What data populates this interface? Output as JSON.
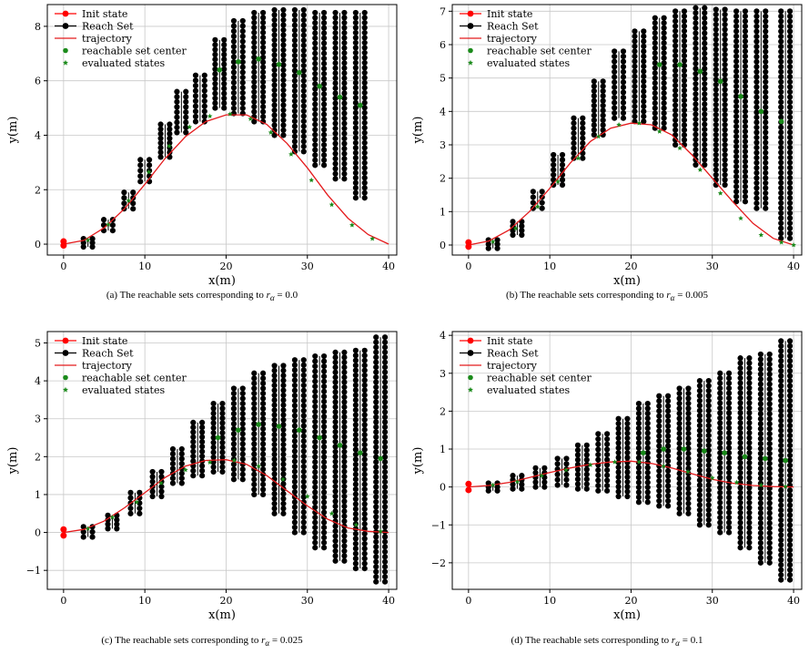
{
  "colors": {
    "init": "#ff0000",
    "reach": "#000000",
    "trajectory": "#e41a1c",
    "center": "#1a8a1a",
    "evaluated": "#1a8a1a",
    "grid": "#c8c8c8"
  },
  "chart_data": [
    {
      "type": "scatter",
      "caption": "(a) The reachable sets corresponding to",
      "caption_value": "= 0.0",
      "xlabel": "x(m)",
      "ylabel": "y(m)",
      "xlim": [
        -2,
        41
      ],
      "ylim": [
        -0.4,
        8.8
      ],
      "xticks": [
        0,
        10,
        20,
        30,
        40
      ],
      "yticks": [
        0,
        2,
        4,
        6,
        8
      ],
      "grid": true,
      "legend_position": "upper-left",
      "legend": [
        "Init state",
        "Reach Set",
        "trajectory",
        "reachable set center",
        "evaluated states"
      ],
      "init": [
        [
          0,
          0.1
        ],
        [
          0,
          -0.05
        ]
      ],
      "trajectory": {
        "x": [
          0,
          2.5,
          5,
          7.5,
          10,
          12.5,
          15,
          17.5,
          20,
          22.5,
          25,
          27.5,
          30,
          32.5,
          35,
          37.5,
          40
        ],
        "y": [
          0.0,
          0.14,
          0.6,
          1.3,
          2.2,
          3.15,
          3.95,
          4.5,
          4.75,
          4.75,
          4.4,
          3.7,
          2.8,
          1.8,
          0.95,
          0.35,
          0.0
        ]
      },
      "evaluated": {
        "x": [
          3,
          5.5,
          8,
          10.5,
          13,
          15.5,
          18,
          20.5,
          23,
          25.5,
          28,
          30.5,
          33,
          35.5,
          38
        ],
        "y": [
          0.15,
          0.72,
          1.6,
          2.65,
          3.6,
          4.3,
          4.7,
          4.78,
          4.6,
          4.1,
          3.3,
          2.35,
          1.45,
          0.7,
          0.2
        ]
      },
      "reach_sets": [
        {
          "x": 3.0,
          "ymin": -0.1,
          "ymax": 0.2
        },
        {
          "x": 5.5,
          "ymin": 0.5,
          "ymax": 0.9
        },
        {
          "x": 8.0,
          "ymin": 1.3,
          "ymax": 1.9
        },
        {
          "x": 10.0,
          "ymin": 2.3,
          "ymax": 3.1
        },
        {
          "x": 12.5,
          "ymin": 3.2,
          "ymax": 4.4
        },
        {
          "x": 14.5,
          "ymin": 4.1,
          "ymax": 5.6
        },
        {
          "x": 16.8,
          "ymin": 4.5,
          "ymax": 6.2
        },
        {
          "x": 19.2,
          "ymin": 5.0,
          "ymax": 7.5
        },
        {
          "x": 21.5,
          "ymin": 4.8,
          "ymax": 8.2
        },
        {
          "x": 24.0,
          "ymin": 4.5,
          "ymax": 8.5
        },
        {
          "x": 26.5,
          "ymin": 4.0,
          "ymax": 8.6
        },
        {
          "x": 29.0,
          "ymin": 3.4,
          "ymax": 8.6
        },
        {
          "x": 31.5,
          "ymin": 2.9,
          "ymax": 8.5
        },
        {
          "x": 34.0,
          "ymin": 2.4,
          "ymax": 8.5
        },
        {
          "x": 36.5,
          "ymin": 1.7,
          "ymax": 8.5
        }
      ],
      "centers": {
        "x": [
          19.2,
          21.5,
          24.0,
          26.5,
          29.0,
          31.5,
          34.0,
          36.5
        ],
        "y": [
          6.4,
          6.7,
          6.8,
          6.6,
          6.3,
          5.8,
          5.4,
          5.1
        ]
      }
    },
    {
      "type": "scatter",
      "caption": "(b) The reachable sets corresponding to",
      "caption_value": "= 0.005",
      "xlabel": "x(m)",
      "ylabel": "y(m)",
      "xlim": [
        -2,
        41
      ],
      "ylim": [
        -0.3,
        7.2
      ],
      "xticks": [
        0,
        10,
        20,
        30,
        40
      ],
      "yticks": [
        0,
        1,
        2,
        3,
        4,
        5,
        6,
        7
      ],
      "grid": true,
      "legend_position": "upper-left",
      "legend": [
        "Init state",
        "Reach Set",
        "trajectory",
        "reachable set center",
        "evaluated states"
      ],
      "init": [
        [
          0,
          0.08
        ],
        [
          0,
          -0.05
        ]
      ],
      "trajectory": {
        "x": [
          0,
          2.5,
          5,
          7.5,
          10,
          12.5,
          15,
          17.5,
          20,
          22.5,
          25,
          27.5,
          30,
          32.5,
          35,
          37.5,
          40
        ],
        "y": [
          0.0,
          0.12,
          0.45,
          1.0,
          1.7,
          2.45,
          3.1,
          3.5,
          3.65,
          3.6,
          3.3,
          2.7,
          2.0,
          1.3,
          0.65,
          0.2,
          0.0
        ]
      },
      "evaluated": {
        "x": [
          3,
          5.8,
          8.5,
          11,
          13.5,
          16,
          18.5,
          21,
          23.5,
          26,
          28.5,
          31,
          33.5,
          36,
          38.5,
          40
        ],
        "y": [
          0.1,
          0.5,
          1.15,
          1.9,
          2.6,
          3.25,
          3.6,
          3.65,
          3.4,
          2.9,
          2.25,
          1.55,
          0.8,
          0.3,
          0.08,
          0.0
        ]
      },
      "reach_sets": [
        {
          "x": 3.0,
          "ymin": -0.1,
          "ymax": 0.15
        },
        {
          "x": 6.0,
          "ymin": 0.3,
          "ymax": 0.7
        },
        {
          "x": 8.5,
          "ymin": 1.1,
          "ymax": 1.6
        },
        {
          "x": 11.0,
          "ymin": 1.8,
          "ymax": 2.7
        },
        {
          "x": 13.5,
          "ymin": 2.6,
          "ymax": 3.8
        },
        {
          "x": 16.0,
          "ymin": 3.3,
          "ymax": 4.9
        },
        {
          "x": 18.5,
          "ymin": 3.8,
          "ymax": 5.8
        },
        {
          "x": 21.0,
          "ymin": 3.7,
          "ymax": 6.4
        },
        {
          "x": 23.5,
          "ymin": 3.5,
          "ymax": 6.8
        },
        {
          "x": 26.0,
          "ymin": 3.0,
          "ymax": 7.0
        },
        {
          "x": 28.5,
          "ymin": 2.4,
          "ymax": 7.1
        },
        {
          "x": 31.0,
          "ymin": 1.8,
          "ymax": 7.05
        },
        {
          "x": 33.5,
          "ymin": 1.3,
          "ymax": 7.0
        },
        {
          "x": 36.0,
          "ymin": 1.1,
          "ymax": 7.0
        },
        {
          "x": 39.0,
          "ymin": 0.2,
          "ymax": 7.0
        }
      ],
      "centers": {
        "x": [
          23.5,
          26.0,
          28.5,
          31.0,
          33.5,
          36.0,
          38.5
        ],
        "y": [
          5.4,
          5.4,
          5.2,
          4.9,
          4.45,
          4.0,
          3.7
        ]
      }
    },
    {
      "type": "scatter",
      "caption": "(c) The reachable sets corresponding to",
      "caption_value": "= 0.025",
      "xlabel": "x(m)",
      "ylabel": "y(m)",
      "xlim": [
        -2,
        41
      ],
      "ylim": [
        -1.5,
        5.3
      ],
      "xticks": [
        0,
        10,
        20,
        30,
        40
      ],
      "yticks": [
        -1,
        0,
        1,
        2,
        3,
        4,
        5
      ],
      "grid": true,
      "legend_position": "upper-left",
      "legend": [
        "Init state",
        "Reach Set",
        "trajectory",
        "reachable set center",
        "evaluated states"
      ],
      "init": [
        [
          0,
          0.08
        ],
        [
          0,
          -0.08
        ]
      ],
      "trajectory": {
        "x": [
          0,
          2.5,
          5,
          7.5,
          10,
          12.5,
          15,
          17.5,
          20,
          22.5,
          25,
          27.5,
          30,
          32.5,
          35,
          37.5,
          40
        ],
        "y": [
          0.0,
          0.08,
          0.3,
          0.65,
          1.05,
          1.45,
          1.75,
          1.9,
          1.92,
          1.8,
          1.5,
          1.1,
          0.7,
          0.35,
          0.12,
          0.03,
          0.0
        ]
      },
      "evaluated": {
        "x": [
          3,
          6,
          9,
          12,
          15,
          18,
          21,
          24,
          27,
          30,
          33,
          36,
          39
        ],
        "y": [
          0.1,
          0.4,
          0.8,
          1.3,
          1.65,
          1.85,
          1.9,
          1.75,
          1.4,
          0.95,
          0.5,
          0.2,
          0.03
        ]
      },
      "reach_sets": [
        {
          "x": 3.0,
          "ymin": -0.12,
          "ymax": 0.15
        },
        {
          "x": 6.0,
          "ymin": 0.1,
          "ymax": 0.45
        },
        {
          "x": 8.8,
          "ymin": 0.5,
          "ymax": 1.05
        },
        {
          "x": 11.5,
          "ymin": 0.95,
          "ymax": 1.6
        },
        {
          "x": 14.0,
          "ymin": 1.3,
          "ymax": 2.2
        },
        {
          "x": 16.5,
          "ymin": 1.5,
          "ymax": 2.9
        },
        {
          "x": 19.0,
          "ymin": 1.6,
          "ymax": 3.4
        },
        {
          "x": 21.5,
          "ymin": 1.4,
          "ymax": 3.8
        },
        {
          "x": 24.0,
          "ymin": 1.0,
          "ymax": 4.2
        },
        {
          "x": 26.5,
          "ymin": 0.5,
          "ymax": 4.4
        },
        {
          "x": 29.0,
          "ymin": 0.0,
          "ymax": 4.55
        },
        {
          "x": 31.5,
          "ymin": -0.4,
          "ymax": 4.65
        },
        {
          "x": 34.0,
          "ymin": -0.75,
          "ymax": 4.75
        },
        {
          "x": 36.5,
          "ymin": -0.95,
          "ymax": 4.8
        },
        {
          "x": 39.0,
          "ymin": -1.3,
          "ymax": 5.15
        }
      ],
      "centers": {
        "x": [
          19.0,
          21.5,
          24.0,
          26.5,
          29.0,
          31.5,
          34.0,
          36.5,
          39.0
        ],
        "y": [
          2.5,
          2.7,
          2.85,
          2.8,
          2.7,
          2.5,
          2.3,
          2.1,
          1.95
        ]
      }
    },
    {
      "type": "scatter",
      "caption": "(d) The reachable sets corresponding to",
      "caption_value": "= 0.1",
      "xlabel": "x(m)",
      "ylabel": "y(m)",
      "xlim": [
        -2,
        41
      ],
      "ylim": [
        -2.7,
        4.1
      ],
      "xticks": [
        0,
        10,
        20,
        30,
        40
      ],
      "yticks": [
        -2,
        -1,
        0,
        1,
        2,
        3,
        4
      ],
      "grid": true,
      "legend_position": "upper-left",
      "legend": [
        "Init state",
        "Reach Set",
        "trajectory",
        "reachable set center",
        "evaluated states"
      ],
      "init": [
        [
          0,
          0.08
        ],
        [
          0,
          -0.08
        ]
      ],
      "trajectory": {
        "x": [
          0,
          2.5,
          5,
          7.5,
          10,
          12.5,
          15,
          17.5,
          20,
          22.5,
          25,
          27.5,
          30,
          32.5,
          35,
          37.5,
          40
        ],
        "y": [
          0.0,
          0.04,
          0.12,
          0.25,
          0.38,
          0.5,
          0.6,
          0.66,
          0.68,
          0.62,
          0.5,
          0.35,
          0.2,
          0.1,
          0.04,
          0.01,
          0.0
        ]
      },
      "evaluated": {
        "x": [
          3,
          6,
          9,
          12,
          15,
          18,
          21,
          24,
          27,
          30,
          33,
          36,
          39
        ],
        "y": [
          0.05,
          0.14,
          0.3,
          0.45,
          0.58,
          0.66,
          0.66,
          0.55,
          0.4,
          0.24,
          0.12,
          0.05,
          0.01
        ]
      },
      "reach_sets": [
        {
          "x": 3.0,
          "ymin": -0.1,
          "ymax": 0.1
        },
        {
          "x": 6.0,
          "ymin": -0.05,
          "ymax": 0.3
        },
        {
          "x": 8.8,
          "ymin": 0.0,
          "ymax": 0.5
        },
        {
          "x": 11.5,
          "ymin": 0.05,
          "ymax": 0.75
        },
        {
          "x": 14.0,
          "ymin": -0.05,
          "ymax": 1.1
        },
        {
          "x": 16.5,
          "ymin": -0.1,
          "ymax": 1.4
        },
        {
          "x": 19.0,
          "ymin": -0.25,
          "ymax": 1.8
        },
        {
          "x": 21.5,
          "ymin": -0.4,
          "ymax": 2.2
        },
        {
          "x": 24.0,
          "ymin": -0.5,
          "ymax": 2.4
        },
        {
          "x": 26.5,
          "ymin": -0.7,
          "ymax": 2.6
        },
        {
          "x": 29.0,
          "ymin": -1.0,
          "ymax": 2.8
        },
        {
          "x": 31.5,
          "ymin": -1.2,
          "ymax": 3.0
        },
        {
          "x": 34.0,
          "ymin": -1.6,
          "ymax": 3.4
        },
        {
          "x": 36.5,
          "ymin": -2.0,
          "ymax": 3.5
        },
        {
          "x": 39.0,
          "ymin": -2.45,
          "ymax": 3.85
        }
      ],
      "centers": {
        "x": [
          21.5,
          24.0,
          26.5,
          29.0,
          31.5,
          34.0,
          36.5,
          39.0
        ],
        "y": [
          0.9,
          1.0,
          1.0,
          0.95,
          0.9,
          0.8,
          0.75,
          0.7
        ]
      }
    }
  ]
}
